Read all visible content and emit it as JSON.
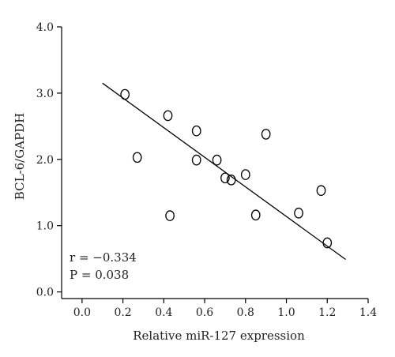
{
  "chart_data": {
    "type": "scatter",
    "title": "",
    "xlabel": "Relative miR-127 expression",
    "ylabel": "BCL-6/GAPDH",
    "xlim": [
      -0.1,
      1.4
    ],
    "ylim": [
      -0.1,
      4.0
    ],
    "x_ticks": [
      0.0,
      0.2,
      0.4,
      0.6,
      0.8,
      1.0,
      1.2,
      1.4
    ],
    "x_tick_labels": [
      "0.0",
      "0.2",
      "0.4",
      "0.6",
      "0.8",
      "1.0",
      "1.2",
      "1.4"
    ],
    "y_ticks": [
      0.0,
      1.0,
      2.0,
      3.0,
      4.0
    ],
    "y_tick_labels": [
      "0.0",
      "1.0",
      "2.0",
      "3.0",
      "4.0"
    ],
    "grid": false,
    "series": [
      {
        "marker": "open-circle",
        "points": [
          {
            "x": 0.21,
            "y": 2.98
          },
          {
            "x": 0.27,
            "y": 2.03
          },
          {
            "x": 0.42,
            "y": 2.66
          },
          {
            "x": 0.43,
            "y": 1.15
          },
          {
            "x": 0.56,
            "y": 2.43
          },
          {
            "x": 0.56,
            "y": 1.99
          },
          {
            "x": 0.66,
            "y": 1.99
          },
          {
            "x": 0.7,
            "y": 1.72
          },
          {
            "x": 0.73,
            "y": 1.69
          },
          {
            "x": 0.8,
            "y": 1.77
          },
          {
            "x": 0.85,
            "y": 1.16
          },
          {
            "x": 0.9,
            "y": 2.38
          },
          {
            "x": 1.06,
            "y": 1.19
          },
          {
            "x": 1.17,
            "y": 1.53
          },
          {
            "x": 1.2,
            "y": 0.74
          }
        ]
      }
    ],
    "regression_line": {
      "x": [
        0.1,
        1.29
      ],
      "y": [
        3.15,
        0.49
      ]
    },
    "stats": {
      "r_label": "r = −0.334",
      "p_label": "P = 0.038"
    }
  }
}
